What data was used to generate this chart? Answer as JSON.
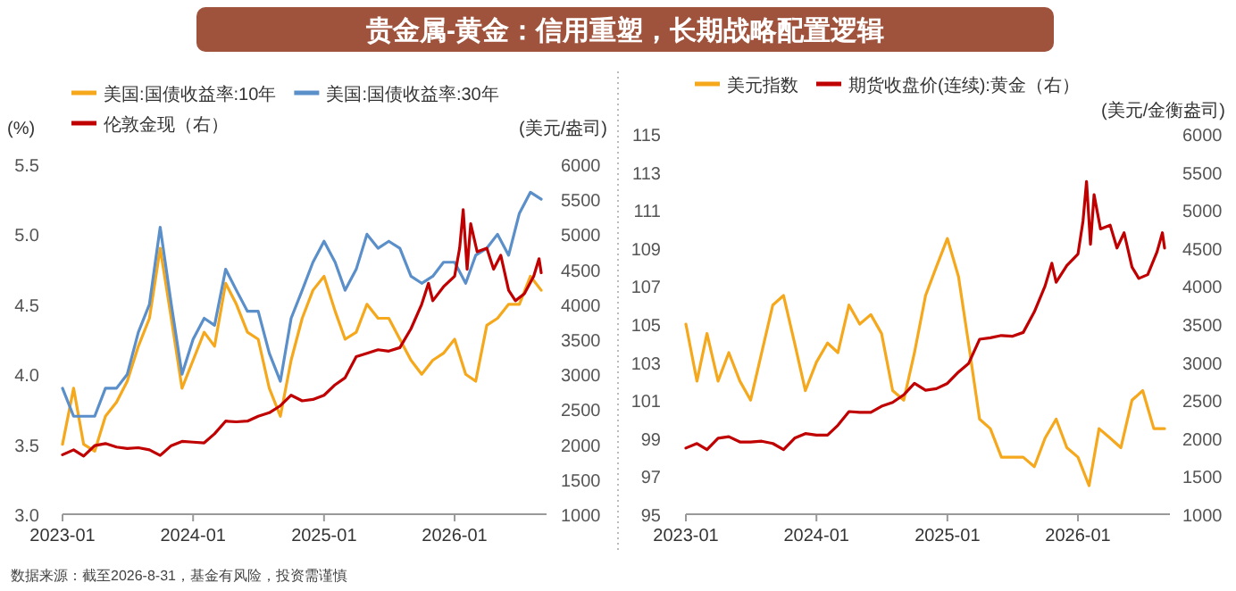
{
  "chart_data": [
    {
      "type": "line",
      "title": "贵金属-黄金：信用重塑，长期战略配置逻辑",
      "ylabel": "(%)",
      "y2label": "(美元/盎司)",
      "legend": "top",
      "grid": false,
      "x": [
        "2023-01-01",
        "2023-02-01",
        "2023-03-01",
        "2023-04-01",
        "2023-05-01",
        "2023-06-01",
        "2023-07-01",
        "2023-08-01",
        "2023-09-01",
        "2023-10-01",
        "2023-11-01",
        "2023-12-01",
        "2024-01-01",
        "2024-02-01",
        "2024-03-01",
        "2024-04-01",
        "2024-05-01",
        "2024-06-01",
        "2024-07-01",
        "2024-08-01",
        "2024-09-01",
        "2024-10-01",
        "2024-11-01",
        "2024-12-01",
        "2025-01-01",
        "2025-02-01",
        "2025-03-01",
        "2025-04-01",
        "2025-05-01",
        "2025-06-01",
        "2025-07-01",
        "2025-08-01",
        "2025-09-01",
        "2025-10-01",
        "2025-11-01",
        "2025-12-01",
        "2026-01-01",
        "2026-02-01",
        "2026-03-01",
        "2026-04-01",
        "2026-05-01",
        "2026-06-01",
        "2026-07-01",
        "2026-08-01",
        "2026-08-31"
      ],
      "xlim": [
        "2023-01-01",
        "2026-09-15"
      ],
      "xticks": [
        "2023-01",
        "2024-01",
        "2025-01",
        "2026-01"
      ],
      "ylim": [
        3,
        5.5
      ],
      "yticks": [
        {
          "value": 3,
          "label": "3.0"
        },
        3.5,
        {
          "value": 4,
          "label": "4.0"
        },
        4.5,
        {
          "value": 5,
          "label": "5.0"
        },
        5.5
      ],
      "y2lim": [
        1000,
        6000
      ],
      "y2ticks": [
        1000,
        1500,
        2000,
        2500,
        3000,
        3500,
        4000,
        4500,
        5000,
        5500,
        6000
      ],
      "series": [
        {
          "name": "美国:国债收益率:10年",
          "color": "#f5a81c",
          "values": [
            3.5,
            3.9,
            3.5,
            3.45,
            3.7,
            3.8,
            3.95,
            4.2,
            4.4,
            4.9,
            4.4,
            3.9,
            4.1,
            4.3,
            4.2,
            4.65,
            4.5,
            4.3,
            4.25,
            3.9,
            3.7,
            4.1,
            4.4,
            4.6,
            4.7,
            4.45,
            4.25,
            4.3,
            4.5,
            4.4,
            4.4,
            4.25,
            4.1,
            4.0,
            4.1,
            4.15,
            4.25,
            4.0,
            3.95,
            4.35,
            4.4,
            4.5,
            4.5,
            4.7,
            4.6
          ]
        },
        {
          "name": "美国:国债收益率:30年",
          "color": "#5b8fc9",
          "values": [
            3.9,
            3.7,
            3.7,
            3.7,
            3.9,
            3.9,
            4.0,
            4.3,
            4.5,
            5.05,
            4.5,
            4.0,
            4.25,
            4.4,
            4.35,
            4.75,
            4.6,
            4.45,
            4.45,
            4.15,
            3.95,
            4.4,
            4.6,
            4.8,
            4.95,
            4.8,
            4.6,
            4.75,
            5.0,
            4.9,
            4.95,
            4.9,
            4.7,
            4.65,
            4.7,
            4.8,
            4.8,
            4.65,
            4.85,
            4.9,
            5.0,
            4.85,
            5.15,
            5.3,
            5.25
          ]
        },
        {
          "name": "伦敦金现（右）",
          "color": "#c00000",
          "axis": "y2",
          "x": [
            "2023-01-01",
            "2023-02-01",
            "2023-03-01",
            "2023-04-01",
            "2023-05-01",
            "2023-06-01",
            "2023-07-01",
            "2023-08-01",
            "2023-09-01",
            "2023-10-01",
            "2023-11-01",
            "2023-12-01",
            "2024-01-01",
            "2024-02-01",
            "2024-03-01",
            "2024-04-01",
            "2024-05-01",
            "2024-06-01",
            "2024-07-01",
            "2024-08-01",
            "2024-09-01",
            "2024-10-01",
            "2024-11-01",
            "2024-12-01",
            "2025-01-01",
            "2025-02-01",
            "2025-03-01",
            "2025-04-01",
            "2025-05-01",
            "2025-06-01",
            "2025-07-01",
            "2025-08-01",
            "2025-09-01",
            "2025-10-01",
            "2025-10-20",
            "2025-11-01",
            "2025-12-01",
            "2026-01-01",
            "2026-01-15",
            "2026-01-25",
            "2026-02-05",
            "2026-02-15",
            "2026-03-05",
            "2026-04-01",
            "2026-04-20",
            "2026-05-10",
            "2026-06-01",
            "2026-06-20",
            "2026-07-15",
            "2026-08-10",
            "2026-08-25",
            "2026-08-31"
          ],
          "values": [
            1850,
            1920,
            1830,
            1980,
            2010,
            1960,
            1940,
            1950,
            1920,
            1840,
            1980,
            2040,
            2030,
            2020,
            2150,
            2330,
            2320,
            2330,
            2400,
            2450,
            2550,
            2700,
            2620,
            2640,
            2700,
            2850,
            2950,
            3250,
            3300,
            3350,
            3330,
            3380,
            3650,
            4000,
            4300,
            4050,
            4250,
            4400,
            4800,
            5350,
            4500,
            5150,
            4750,
            4800,
            4500,
            4700,
            4200,
            4050,
            4150,
            4400,
            4650,
            4450
          ]
        }
      ],
      "annotations": [
        "数据来源：截至2026-8-31，基金有风险，投资需谨慎"
      ]
    },
    {
      "type": "line",
      "y2label": "(美元/金衡盎司)",
      "legend": "top",
      "grid": false,
      "x": [
        "2023-01-01",
        "2023-02-01",
        "2023-03-01",
        "2023-04-01",
        "2023-05-01",
        "2023-06-01",
        "2023-07-01",
        "2023-08-01",
        "2023-09-01",
        "2023-10-01",
        "2023-11-01",
        "2023-12-01",
        "2024-01-01",
        "2024-02-01",
        "2024-03-01",
        "2024-04-01",
        "2024-05-01",
        "2024-06-01",
        "2024-07-01",
        "2024-08-01",
        "2024-09-01",
        "2024-10-01",
        "2024-11-01",
        "2024-12-01",
        "2025-01-01",
        "2025-02-01",
        "2025-03-01",
        "2025-04-01",
        "2025-05-01",
        "2025-06-01",
        "2025-07-01",
        "2025-08-01",
        "2025-09-01",
        "2025-10-01",
        "2025-11-01",
        "2025-12-01",
        "2026-01-01",
        "2026-02-01",
        "2026-03-01",
        "2026-04-01",
        "2026-05-01",
        "2026-06-01",
        "2026-07-01",
        "2026-08-01",
        "2026-08-31"
      ],
      "xlim": [
        "2023-01-01",
        "2026-09-15"
      ],
      "xticks": [
        "2023-01",
        "2024-01",
        "2025-01",
        "2026-01"
      ],
      "ylim": [
        95,
        115
      ],
      "yticks": [
        95,
        97,
        99,
        101,
        103,
        105,
        107,
        109,
        111,
        113,
        115
      ],
      "y2lim": [
        1000,
        6000
      ],
      "y2ticks": [
        1000,
        1500,
        2000,
        2500,
        3000,
        3500,
        4000,
        4500,
        5000,
        5500,
        6000
      ],
      "series": [
        {
          "name": "美元指数",
          "color": "#f5a81c",
          "values": [
            105,
            102,
            104.5,
            102,
            103.5,
            102,
            101,
            103.5,
            106,
            106.5,
            104,
            101.5,
            103,
            104,
            103.5,
            106,
            105,
            105.5,
            104.5,
            101.5,
            101,
            103.5,
            106.5,
            108,
            109.5,
            107.5,
            104,
            100,
            99.5,
            98,
            98,
            98,
            97.5,
            99,
            100,
            98.5,
            98,
            96.5,
            99.5,
            99,
            98.5,
            101,
            101.5,
            99.5,
            99.5
          ]
        },
        {
          "name": "期货收盘价(连续):黄金（右）",
          "color": "#c00000",
          "axis": "y2",
          "x": [
            "2023-01-01",
            "2023-02-01",
            "2023-03-01",
            "2023-04-01",
            "2023-05-01",
            "2023-06-01",
            "2023-07-01",
            "2023-08-01",
            "2023-09-01",
            "2023-10-01",
            "2023-11-01",
            "2023-12-01",
            "2024-01-01",
            "2024-02-01",
            "2024-03-01",
            "2024-04-01",
            "2024-05-01",
            "2024-06-01",
            "2024-07-01",
            "2024-08-01",
            "2024-09-01",
            "2024-10-01",
            "2024-11-01",
            "2024-12-01",
            "2025-01-01",
            "2025-02-01",
            "2025-03-01",
            "2025-04-01",
            "2025-05-01",
            "2025-06-01",
            "2025-07-01",
            "2025-08-01",
            "2025-09-01",
            "2025-10-01",
            "2025-10-20",
            "2025-11-01",
            "2025-12-01",
            "2026-01-01",
            "2026-01-15",
            "2026-01-25",
            "2026-02-05",
            "2026-02-15",
            "2026-03-05",
            "2026-04-01",
            "2026-04-20",
            "2026-05-10",
            "2026-06-01",
            "2026-06-20",
            "2026-07-15",
            "2026-08-10",
            "2026-08-25",
            "2026-08-31"
          ],
          "values": [
            1870,
            1930,
            1850,
            2000,
            2020,
            1950,
            1950,
            1960,
            1930,
            1850,
            2000,
            2060,
            2040,
            2040,
            2170,
            2350,
            2340,
            2340,
            2420,
            2470,
            2570,
            2720,
            2630,
            2650,
            2720,
            2870,
            2980,
            3300,
            3320,
            3350,
            3340,
            3390,
            3660,
            4000,
            4300,
            4050,
            4270,
            4420,
            4850,
            5375,
            4550,
            5200,
            4750,
            4800,
            4500,
            4700,
            4250,
            4100,
            4150,
            4450,
            4700,
            4500
          ]
        }
      ]
    }
  ]
}
